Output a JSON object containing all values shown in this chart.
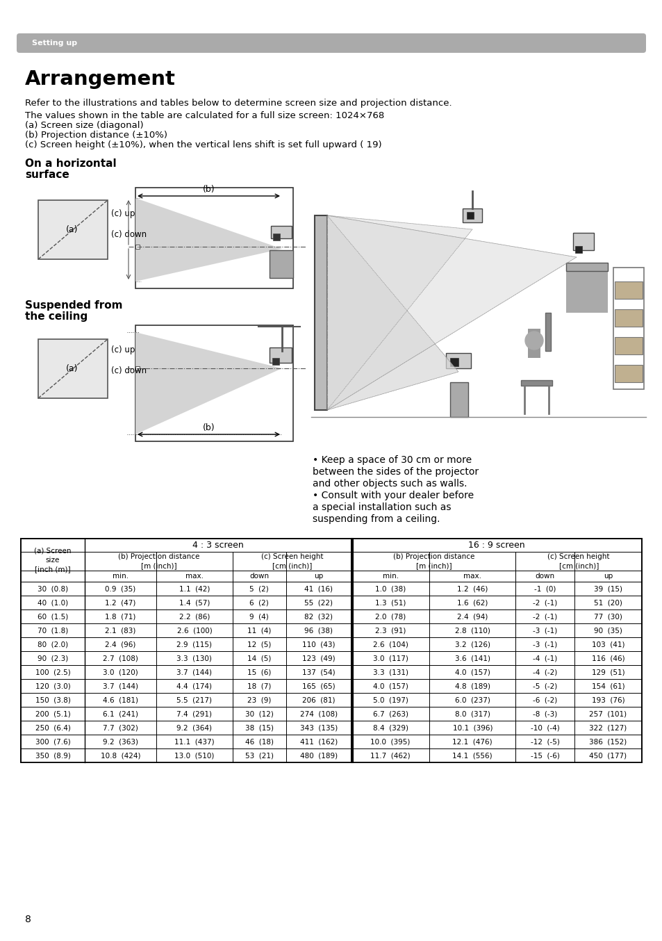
{
  "page_bg": "#ffffff",
  "header_bg": "#aaaaaa",
  "header_text": "Setting up",
  "header_text_color": "#ffffff",
  "title": "Arrangement",
  "intro_lines": [
    "Refer to the illustrations and tables below to determine screen size and projection distance.",
    "The values shown in the table are calculated for a full size screen: 1024×768",
    "(a) Screen size (diagonal)",
    "(b) Projection distance (±10%)",
    "(c) Screen height (±10%), when the vertical lens shift is set full upward ( 19)"
  ],
  "section1_title_line1": "On a horizontal",
  "section1_title_line2": "surface",
  "section2_title_line1": "Suspended from",
  "section2_title_line2": "the ceiling",
  "note_lines": [
    "• Keep a space of 30 cm or more",
    "between the sides of the projector",
    "and other objects such as walls.",
    "• Consult with your dealer before",
    "a special installation such as",
    "suspending from a ceiling."
  ],
  "table_rows": [
    [
      "30  (0.8)",
      "0.9  (35)",
      "1.1  (42)",
      "5  (2)",
      "41  (16)",
      "1.0  (38)",
      "1.2  (46)",
      "-1  (0)",
      "39  (15)"
    ],
    [
      "40  (1.0)",
      "1.2  (47)",
      "1.4  (57)",
      "6  (2)",
      "55  (22)",
      "1.3  (51)",
      "1.6  (62)",
      "-2  (-1)",
      "51  (20)"
    ],
    [
      "60  (1.5)",
      "1.8  (71)",
      "2.2  (86)",
      "9  (4)",
      "82  (32)",
      "2.0  (78)",
      "2.4  (94)",
      "-2  (-1)",
      "77  (30)"
    ],
    [
      "70  (1.8)",
      "2.1  (83)",
      "2.6  (100)",
      "11  (4)",
      "96  (38)",
      "2.3  (91)",
      "2.8  (110)",
      "-3  (-1)",
      "90  (35)"
    ],
    [
      "80  (2.0)",
      "2.4  (96)",
      "2.9  (115)",
      "12  (5)",
      "110  (43)",
      "2.6  (104)",
      "3.2  (126)",
      "-3  (-1)",
      "103  (41)"
    ],
    [
      "90  (2.3)",
      "2.7  (108)",
      "3.3  (130)",
      "14  (5)",
      "123  (49)",
      "3.0  (117)",
      "3.6  (141)",
      "-4  (-1)",
      "116  (46)"
    ],
    [
      "100  (2.5)",
      "3.0  (120)",
      "3.7  (144)",
      "15  (6)",
      "137  (54)",
      "3.3  (131)",
      "4.0  (157)",
      "-4  (-2)",
      "129  (51)"
    ],
    [
      "120  (3.0)",
      "3.7  (144)",
      "4.4  (174)",
      "18  (7)",
      "165  (65)",
      "4.0  (157)",
      "4.8  (189)",
      "-5  (-2)",
      "154  (61)"
    ],
    [
      "150  (3.8)",
      "4.6  (181)",
      "5.5  (217)",
      "23  (9)",
      "206  (81)",
      "5.0  (197)",
      "6.0  (237)",
      "-6  (-2)",
      "193  (76)"
    ],
    [
      "200  (5.1)",
      "6.1  (241)",
      "7.4  (291)",
      "30  (12)",
      "274  (108)",
      "6.7  (263)",
      "8.0  (317)",
      "-8  (-3)",
      "257  (101)"
    ],
    [
      "250  (6.4)",
      "7.7  (302)",
      "9.2  (364)",
      "38  (15)",
      "343  (135)",
      "8.4  (329)",
      "10.1  (396)",
      "-10  (-4)",
      "322  (127)"
    ],
    [
      "300  (7.6)",
      "9.2  (363)",
      "11.1  (437)",
      "46  (18)",
      "411  (162)",
      "10.0  (395)",
      "12.1  (476)",
      "-12  (-5)",
      "386  (152)"
    ],
    [
      "350  (8.9)",
      "10.8  (424)",
      "13.0  (510)",
      "53  (21)",
      "480  (189)",
      "11.7  (462)",
      "14.1  (556)",
      "-15  (-6)",
      "450  (177)"
    ]
  ],
  "page_num": "8",
  "text_color": "#000000",
  "table_line_color": "#000000",
  "diagram_border": "#333333",
  "diagram_fill": "#e8e8e8",
  "beam_fill": "#d0d0d0",
  "beam_edge": "#888888"
}
